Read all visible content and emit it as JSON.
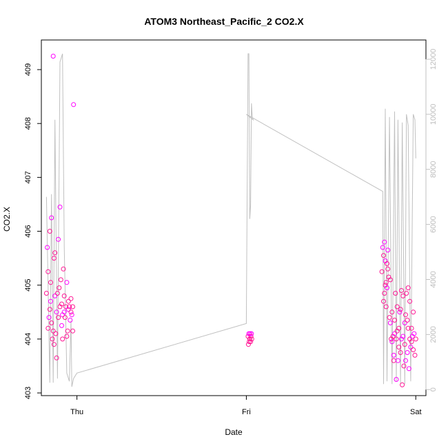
{
  "chart_data": {
    "type": "scatter",
    "title": "ATOM3 Northeast_Pacific_2 CO2.X",
    "xlabel": "Date",
    "ylabel": "CO2.X",
    "xlim": [
      -0.21,
      2.06
    ],
    "ylim": [
      402.95,
      409.55
    ],
    "y2lim": [
      -220,
      12700
    ],
    "x_ticks": [
      {
        "v": 0,
        "label": "Thu"
      },
      {
        "v": 1,
        "label": "Fri"
      },
      {
        "v": 2,
        "label": "Sat"
      }
    ],
    "y_ticks": [
      403,
      404,
      405,
      406,
      407,
      408,
      409
    ],
    "y2_ticks": [
      0,
      2000,
      4000,
      6000,
      8000,
      10000,
      12000
    ],
    "colors": {
      "points": "#ff1493",
      "points_alt": "#ff00ff",
      "line": "#c0c0c0",
      "axis": "#000000",
      "right_axis": "#c0c0c0"
    },
    "series": [
      {
        "marker": "circle",
        "x": [
          -0.18,
          -0.175,
          -0.17,
          -0.17,
          -0.165,
          -0.16,
          -0.16,
          -0.155,
          -0.155,
          -0.15,
          -0.15,
          -0.145,
          -0.14,
          -0.14,
          -0.135,
          -0.135,
          -0.13,
          -0.13,
          -0.125,
          -0.12,
          -0.12,
          -0.115,
          -0.11,
          -0.11,
          -0.105,
          -0.1,
          -0.1,
          -0.095,
          -0.09,
          -0.09,
          -0.085,
          -0.085,
          -0.08,
          -0.075,
          -0.075,
          -0.07,
          -0.065,
          -0.06,
          -0.06,
          -0.055,
          -0.05,
          -0.05,
          -0.045,
          -0.04,
          -0.035,
          -0.035,
          -0.03,
          -0.025,
          -0.025,
          -0.02,
          1.01,
          1.012,
          1.015,
          1.017,
          1.02,
          1.022,
          1.025,
          1.027,
          1.03,
          1.032,
          1.8,
          1.805,
          1.81,
          1.81,
          1.815,
          1.815,
          1.82,
          1.82,
          1.825,
          1.825,
          1.83,
          1.83,
          1.835,
          1.835,
          1.84,
          1.845,
          1.85,
          1.85,
          1.855,
          1.86,
          1.86,
          1.865,
          1.87,
          1.87,
          1.875,
          1.875,
          1.88,
          1.885,
          1.885,
          1.89,
          1.89,
          1.895,
          1.9,
          1.9,
          1.905,
          1.91,
          1.91,
          1.915,
          1.915,
          1.92,
          1.925,
          1.925,
          1.93,
          1.935,
          1.935,
          1.94,
          1.94,
          1.945,
          1.95,
          1.95,
          1.955,
          1.955,
          1.96,
          1.965,
          1.965,
          1.97,
          1.975,
          1.975,
          1.98,
          1.985,
          1.985,
          1.99,
          1.995,
          2.0
        ],
        "y": [
          404.85,
          405.7,
          404.2,
          405.25,
          404.4,
          406.0,
          404.55,
          404.7,
          405.05,
          404.3,
          406.25,
          404.0,
          404.15,
          409.25,
          403.9,
          405.5,
          404.8,
          405.6,
          404.1,
          404.5,
          403.65,
          404.85,
          405.85,
          404.4,
          404.95,
          406.45,
          404.6,
          405.1,
          404.25,
          404.65,
          404.0,
          404.45,
          405.3,
          404.8,
          404.5,
          404.4,
          404.6,
          405.05,
          404.05,
          404.15,
          404.55,
          404.7,
          404.6,
          404.35,
          404.5,
          404.75,
          404.45,
          404.6,
          404.15,
          408.35,
          404.05,
          403.9,
          404.1,
          403.95,
          404.0,
          404.1,
          403.95,
          404.05,
          404.1,
          404.0,
          405.25,
          405.7,
          404.7,
          405.55,
          405.8,
          404.85,
          405.0,
          405.45,
          404.6,
          405.05,
          404.95,
          405.4,
          405.3,
          405.65,
          405.15,
          404.4,
          404.3,
          405.1,
          404.0,
          403.95,
          404.5,
          404.05,
          403.7,
          403.6,
          404.35,
          404.1,
          404.85,
          404.0,
          403.25,
          404.6,
          404.15,
          403.6,
          403.85,
          404.2,
          404.5,
          403.75,
          404.55,
          404.0,
          404.9,
          403.15,
          404.05,
          404.8,
          403.5,
          404.3,
          403.9,
          404.45,
          403.6,
          404.85,
          404.35,
          403.75,
          404.95,
          404.2,
          403.45,
          404.7,
          404.0,
          403.85,
          404.2,
          403.95,
          404.05,
          403.8,
          404.5,
          404.1,
          403.7,
          404.0
        ],
        "color": "#ff1493"
      },
      {
        "type": "line",
        "axis": "right",
        "x": [
          -0.18,
          -0.16,
          -0.15,
          -0.14,
          -0.13,
          -0.115,
          -0.1,
          -0.085,
          -0.075,
          -0.06,
          -0.045,
          -0.035,
          -0.03,
          -0.02,
          0.0,
          1.0,
          1.01,
          1.015,
          1.02,
          1.025,
          1.03,
          1.035,
          1.04,
          1.0,
          1.805,
          1.81,
          1.82,
          1.83,
          1.845,
          1.86,
          1.875,
          1.885,
          1.895,
          1.91,
          1.92,
          1.935,
          1.945,
          1.955,
          1.97,
          1.985,
          1.995,
          2.0
        ],
        "y": [
          7000,
          250,
          7100,
          250,
          9800,
          400,
          11900,
          12200,
          5200,
          600,
          300,
          2500,
          100,
          400,
          600,
          2400,
          12200,
          12200,
          6200,
          6700,
          10400,
          9900,
          9800,
          10000,
          7200,
          200,
          10200,
          300,
          9900,
          200,
          10100,
          300,
          9800,
          200,
          9700,
          200,
          10000,
          9600,
          300,
          10000,
          9800,
          8400
        ],
        "color": "#c0c0c0"
      }
    ]
  }
}
